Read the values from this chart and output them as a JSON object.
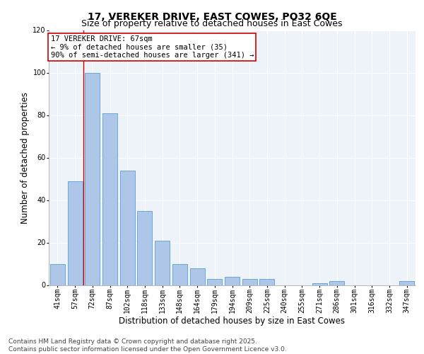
{
  "title_line1": "17, VEREKER DRIVE, EAST COWES, PO32 6QE",
  "title_line2": "Size of property relative to detached houses in East Cowes",
  "xlabel": "Distribution of detached houses by size in East Cowes",
  "ylabel": "Number of detached properties",
  "categories": [
    "41sqm",
    "57sqm",
    "72sqm",
    "87sqm",
    "102sqm",
    "118sqm",
    "133sqm",
    "148sqm",
    "164sqm",
    "179sqm",
    "194sqm",
    "209sqm",
    "225sqm",
    "240sqm",
    "255sqm",
    "271sqm",
    "286sqm",
    "301sqm",
    "316sqm",
    "332sqm",
    "347sqm"
  ],
  "values": [
    10,
    49,
    100,
    81,
    54,
    35,
    21,
    10,
    8,
    3,
    4,
    3,
    3,
    0,
    0,
    1,
    2,
    0,
    0,
    0,
    2
  ],
  "bar_color": "#aec6e8",
  "bar_edge_color": "#5a9fd4",
  "vline_x_idx": 1.5,
  "vline_color": "#cc0000",
  "annotation_text": "17 VEREKER DRIVE: 67sqm\n← 9% of detached houses are smaller (35)\n90% of semi-detached houses are larger (341) →",
  "annotation_box_color": "#ffffff",
  "annotation_box_edge": "#cc0000",
  "ylim": [
    0,
    120
  ],
  "yticks": [
    0,
    20,
    40,
    60,
    80,
    100,
    120
  ],
  "footer_text": "Contains HM Land Registry data © Crown copyright and database right 2025.\nContains public sector information licensed under the Open Government Licence v3.0.",
  "bg_color": "#eef2f9",
  "grid_color": "#ffffff",
  "title_fontsize": 10,
  "subtitle_fontsize": 9,
  "axis_label_fontsize": 8.5,
  "tick_fontsize": 7,
  "annotation_fontsize": 7.5,
  "footer_fontsize": 6.5
}
